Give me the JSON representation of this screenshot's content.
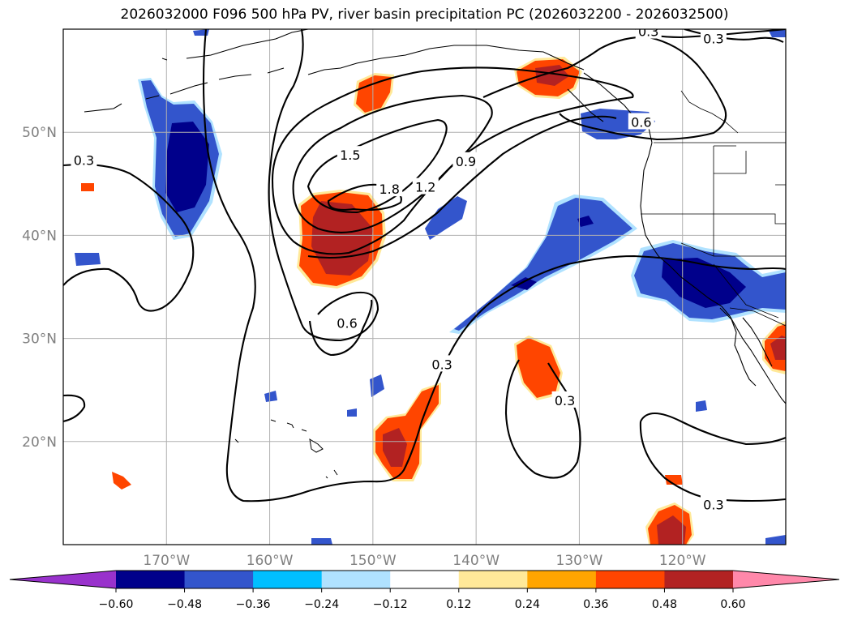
{
  "chart_data": {
    "type": "contour-map",
    "title": "2026032000 F096 500 hPa PV, river basin precipitation PC (2026032200 - 2026032500)",
    "xlim": [
      -180,
      -110
    ],
    "ylim": [
      10,
      60
    ],
    "x_ticks": [
      -170,
      -160,
      -150,
      -140,
      -130,
      -120
    ],
    "x_tick_labels": [
      "170°W",
      "160°W",
      "150°W",
      "140°W",
      "130°W",
      "120°W"
    ],
    "y_ticks": [
      20,
      30,
      40,
      50
    ],
    "y_tick_labels": [
      "20°N",
      "30°N",
      "40°N",
      "50°N"
    ],
    "grid": true,
    "pv_contour_levels": [
      0.3,
      0.6,
      0.9,
      1.2,
      1.5,
      1.8
    ],
    "contour_labels": [
      {
        "text": "0.3",
        "lon": -178.0,
        "lat": 47.3
      },
      {
        "text": "0.3",
        "lon": -123.3,
        "lat": 59.8
      },
      {
        "text": "0.3",
        "lon": -117.0,
        "lat": 59.1
      },
      {
        "text": "1.5",
        "lon": -152.2,
        "lat": 47.8
      },
      {
        "text": "1.8",
        "lon": -148.4,
        "lat": 44.5
      },
      {
        "text": "1.2",
        "lon": -144.9,
        "lat": 44.7
      },
      {
        "text": "0.9",
        "lon": -141.0,
        "lat": 47.2
      },
      {
        "text": "0.6",
        "lon": -124.0,
        "lat": 51.0
      },
      {
        "text": "0.6",
        "lon": -152.5,
        "lat": 31.5
      },
      {
        "text": "0.3",
        "lon": -143.3,
        "lat": 27.5
      },
      {
        "text": "0.3",
        "lon": -131.4,
        "lat": 24.0
      },
      {
        "text": "0.3",
        "lon": -117.0,
        "lat": 13.9
      }
    ],
    "colorbar": {
      "boundaries": [
        -0.6,
        -0.48,
        -0.36,
        -0.24,
        -0.12,
        0.12,
        0.24,
        0.36,
        0.48,
        0.6
      ],
      "tick_labels": [
        "−0.60",
        "−0.48",
        "−0.36",
        "−0.24",
        "−0.12",
        "0.12",
        "0.24",
        "0.36",
        "0.48",
        "0.60"
      ],
      "colors": [
        "#9932CC",
        "#00008B",
        "#3355CC",
        "#00BFFF",
        "#B0E2FF",
        "#FFFFFF",
        "#FFE999",
        "#FFA500",
        "#FF4500",
        "#B22222",
        "#FF88AA"
      ],
      "extend": "both"
    }
  }
}
